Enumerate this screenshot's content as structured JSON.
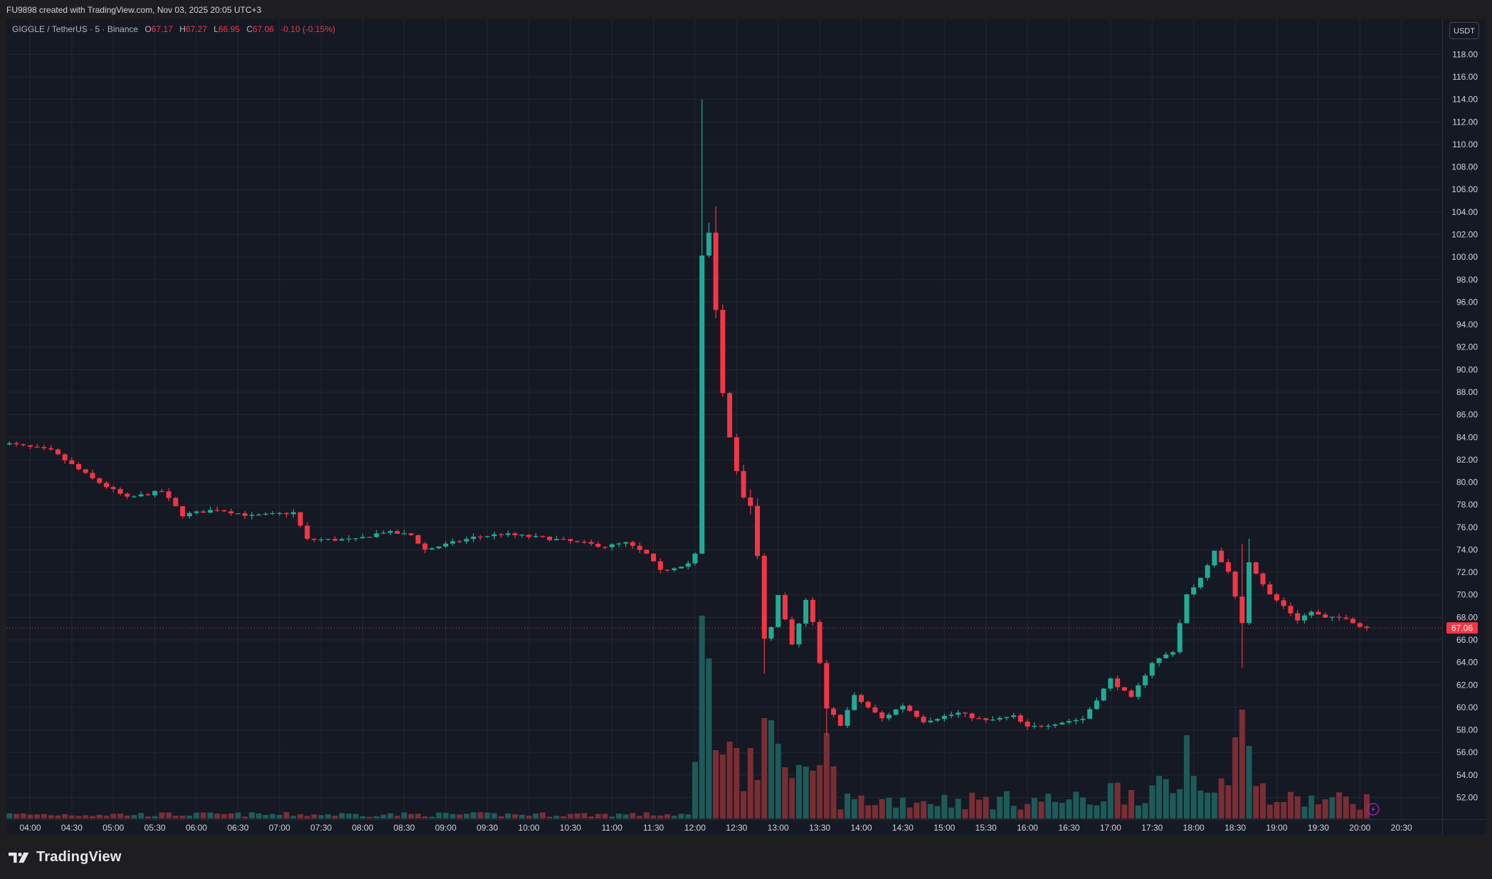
{
  "header": {
    "credit": "FU9898 created with TradingView.com, Nov 03, 2025 20:05 UTC+3"
  },
  "legend": {
    "symbol": "GIGGLE / TetherUS · 5 · Binance",
    "open_label": "O",
    "open": "67.17",
    "high_label": "H",
    "high": "67.27",
    "low_label": "L",
    "low": "66.95",
    "close_label": "C",
    "close": "67.06",
    "change": "-0.10 (-0.15%)"
  },
  "currency_button": "USDT",
  "footer": {
    "brand": "TradingView"
  },
  "colors": {
    "up": "#22ab94",
    "down": "#f23645",
    "background": "#151924",
    "grid": "#232733",
    "up_volume": "#1d5b59",
    "down_volume": "#7a2e34",
    "alert_icon": "#9c27b0"
  },
  "chart_data": {
    "type": "candlestick",
    "symbol": "GIGGLE / TetherUS",
    "interval": "5",
    "exchange": "Binance",
    "y_axis": {
      "ticks": [
        "52.00",
        "54.00",
        "56.00",
        "58.00",
        "60.00",
        "62.00",
        "64.00",
        "66.00",
        "68.00",
        "70.00",
        "72.00",
        "74.00",
        "76.00",
        "78.00",
        "80.00",
        "82.00",
        "84.00",
        "86.00",
        "88.00",
        "90.00",
        "92.00",
        "94.00",
        "96.00",
        "98.00",
        "100.00",
        "102.00",
        "104.00",
        "106.00",
        "108.00",
        "110.00",
        "112.00",
        "114.00",
        "116.00",
        "118.00"
      ],
      "range": [
        50.5,
        120.3
      ],
      "side": "right"
    },
    "x_axis": {
      "ticks": [
        "04:00",
        "04:30",
        "05:00",
        "05:30",
        "06:00",
        "06:30",
        "07:00",
        "07:30",
        "08:00",
        "08:30",
        "09:00",
        "09:30",
        "10:00",
        "10:30",
        "11:00",
        "11:30",
        "12:00",
        "12:30",
        "13:00",
        "13:30",
        "14:00",
        "14:30",
        "15:00",
        "15:30",
        "16:00",
        "16:30",
        "17:00",
        "17:30",
        "18:00",
        "18:30",
        "19:00",
        "19:30",
        "20:00",
        "20:30"
      ],
      "start_time": "03:40",
      "end_time": "20:35"
    },
    "current_price": {
      "value": 67.06,
      "label": "67.06"
    },
    "grid": true,
    "waypoints": [
      [
        "03:40",
        83.5
      ],
      [
        "04:15",
        82.8
      ],
      [
        "04:45",
        80.3
      ],
      [
        "05:10",
        78.6
      ],
      [
        "05:35",
        79.2
      ],
      [
        "05:50",
        77.1
      ],
      [
        "06:15",
        77.6
      ],
      [
        "06:40",
        77.0
      ],
      [
        "07:10",
        77.3
      ],
      [
        "07:20",
        74.9
      ],
      [
        "07:55",
        74.9
      ],
      [
        "08:15",
        75.6
      ],
      [
        "08:35",
        75.3
      ],
      [
        "08:45",
        74.0
      ],
      [
        "09:20",
        75.1
      ],
      [
        "09:40",
        75.4
      ],
      [
        "10:15",
        75.0
      ],
      [
        "10:55",
        74.3
      ],
      [
        "11:10",
        74.6
      ],
      [
        "11:25",
        73.6
      ],
      [
        "11:35",
        72.1
      ],
      [
        "11:55",
        72.8
      ],
      [
        "12:00",
        73.6
      ],
      [
        "12:05",
        99.7
      ],
      [
        "12:10",
        102.0
      ],
      [
        "12:15",
        96.0
      ],
      [
        "12:20",
        88.0
      ],
      [
        "12:25",
        84.0
      ],
      [
        "12:35",
        79.0
      ],
      [
        "12:40",
        78.5
      ],
      [
        "12:45",
        74.0
      ],
      [
        "12:50",
        66.0
      ],
      [
        "12:55",
        67.0
      ],
      [
        "13:00",
        70.0
      ],
      [
        "13:10",
        65.5
      ],
      [
        "13:20",
        69.5
      ],
      [
        "13:25",
        67.5
      ],
      [
        "13:30",
        64.0
      ],
      [
        "13:35",
        60.0
      ],
      [
        "13:45",
        58.5
      ],
      [
        "13:55",
        61.0
      ],
      [
        "14:15",
        59.0
      ],
      [
        "14:30",
        60.2
      ],
      [
        "14:45",
        58.8
      ],
      [
        "15:10",
        59.5
      ],
      [
        "15:30",
        58.8
      ],
      [
        "15:50",
        59.2
      ],
      [
        "16:00",
        58.2
      ],
      [
        "16:20",
        58.6
      ],
      [
        "16:40",
        59.0
      ],
      [
        "17:00",
        62.5
      ],
      [
        "17:15",
        60.8
      ],
      [
        "17:30",
        64.0
      ],
      [
        "17:45",
        65.0
      ],
      [
        "17:55",
        70.0
      ],
      [
        "18:05",
        71.5
      ],
      [
        "18:15",
        74.0
      ],
      [
        "18:25",
        72.0
      ],
      [
        "18:35",
        67.5
      ],
      [
        "18:40",
        73.0
      ],
      [
        "18:55",
        70.0
      ],
      [
        "19:05",
        69.0
      ],
      [
        "19:15",
        67.8
      ],
      [
        "19:25",
        68.5
      ],
      [
        "19:35",
        67.9
      ],
      [
        "19:50",
        68.0
      ],
      [
        "20:00",
        67.2
      ],
      [
        "20:05",
        67.06
      ]
    ],
    "spikes": {
      "12:05": {
        "high": 114.0,
        "low": 74.5
      },
      "12:15": {
        "high": 104.5
      },
      "12:50": {
        "low": 63.0
      },
      "13:35": {
        "low": 57.5
      },
      "18:35": {
        "high": 74.5,
        "low": 63.5
      },
      "18:40": {
        "high": 75.0
      }
    },
    "volume_peaks": {
      "12:05": 0.95,
      "12:10": 0.75,
      "12:15": 0.32,
      "12:20": 0.3,
      "12:25": 0.36,
      "12:30": 0.33,
      "12:40": 0.33,
      "12:50": 0.47,
      "12:55": 0.46,
      "13:00": 0.35,
      "13:05": 0.24,
      "13:35": 0.4,
      "17:55": 0.39,
      "18:30": 0.38,
      "18:35": 0.51,
      "18:40": 0.34
    }
  }
}
